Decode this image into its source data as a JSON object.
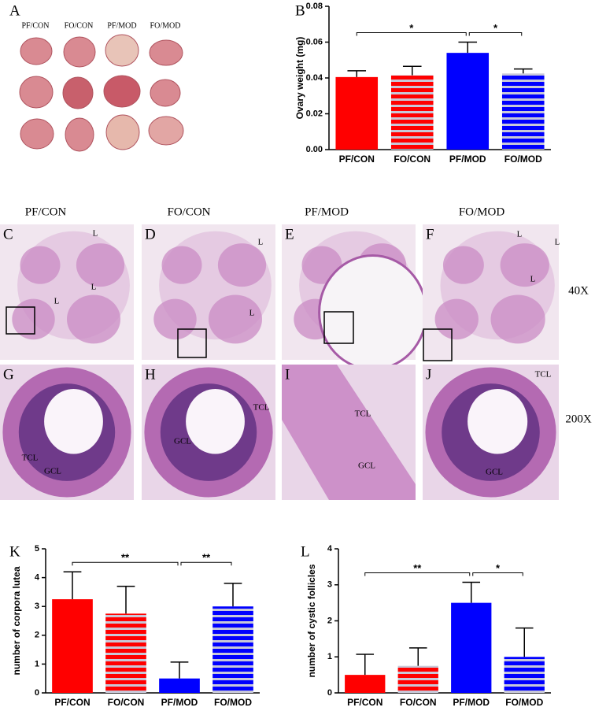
{
  "figure_a": {
    "label": "A",
    "groups": [
      "PF/CON",
      "FO/CON",
      "PF/MOD",
      "FO/MOD"
    ]
  },
  "histology": {
    "column_titles": [
      "PF/CON",
      "FO/CON",
      "PF/MOD",
      "FO/MOD"
    ],
    "rows": [
      {
        "magnification": "40X",
        "panels": [
          {
            "label": "C",
            "annotations": [
              "L",
              "L",
              "L"
            ]
          },
          {
            "label": "D",
            "annotations": [
              "L",
              "L"
            ]
          },
          {
            "label": "E"
          },
          {
            "label": "F",
            "annotations": [
              "L",
              "L",
              "L"
            ]
          }
        ]
      },
      {
        "magnification": "200X",
        "panels": [
          {
            "label": "G",
            "annotations": [
              "TCL",
              "GCL"
            ]
          },
          {
            "label": "H",
            "annotations": [
              "GCL",
              "TCL"
            ]
          },
          {
            "label": "I",
            "annotations": [
              "TCL",
              "GCL"
            ]
          },
          {
            "label": "J",
            "annotations": [
              "TCL",
              "GCL"
            ]
          }
        ]
      }
    ]
  },
  "chart_data": [
    {
      "type": "bar",
      "panel_label": "B",
      "y_label": "Ovary weight (mg)",
      "categories": [
        "PF/CON",
        "FO/CON",
        "PF/MOD",
        "FO/MOD"
      ],
      "values": [
        0.0405,
        0.0415,
        0.054,
        0.0425
      ],
      "errors": [
        0.0035,
        0.005,
        0.006,
        0.0025
      ],
      "colors": [
        "#ff0000",
        "#ff0000",
        "#0000ff",
        "#0000ff"
      ],
      "hatched": [
        false,
        true,
        false,
        true
      ],
      "ylim": [
        0,
        0.08
      ],
      "yticks": [
        {
          "value": 0,
          "label": "0.00"
        },
        {
          "value": 0.02,
          "label": "0.02"
        },
        {
          "value": 0.04,
          "label": "0.04"
        },
        {
          "value": 0.06,
          "label": "0.06"
        },
        {
          "value": 0.08,
          "label": "0.08"
        }
      ],
      "significance": [
        {
          "from": 0,
          "to": 2,
          "label": "*"
        },
        {
          "from": 2,
          "to": 3,
          "label": "*"
        }
      ]
    },
    {
      "type": "bar",
      "panel_label": "K",
      "y_label": "number of corpora lutea",
      "categories": [
        "PF/CON",
        "FO/CON",
        "PF/MOD",
        "FO/MOD"
      ],
      "values": [
        3.25,
        2.75,
        0.5,
        3.0
      ],
      "errors": [
        0.95,
        0.95,
        0.57,
        0.8
      ],
      "colors": [
        "#ff0000",
        "#ff0000",
        "#0000ff",
        "#0000ff"
      ],
      "hatched": [
        false,
        true,
        false,
        true
      ],
      "ylim": [
        0,
        5
      ],
      "yticks": [
        0,
        1,
        2,
        3,
        4,
        5
      ],
      "significance": [
        {
          "from": 0,
          "to": 2,
          "label": "**"
        },
        {
          "from": 2,
          "to": 3,
          "label": "**"
        }
      ]
    },
    {
      "type": "bar",
      "panel_label": "L",
      "y_label": "number of cystic follicles",
      "categories": [
        "PF/CON",
        "FO/CON",
        "PF/MOD",
        "FO/MOD"
      ],
      "values": [
        0.5,
        0.75,
        2.5,
        1.0
      ],
      "errors": [
        0.57,
        0.5,
        0.57,
        0.8
      ],
      "colors": [
        "#ff0000",
        "#ff0000",
        "#0000ff",
        "#0000ff"
      ],
      "hatched": [
        false,
        true,
        false,
        true
      ],
      "ylim": [
        0,
        4
      ],
      "yticks": [
        0,
        1,
        2,
        3,
        4
      ],
      "significance": [
        {
          "from": 0,
          "to": 2,
          "label": "**"
        },
        {
          "from": 2,
          "to": 3,
          "label": "*"
        }
      ]
    }
  ]
}
